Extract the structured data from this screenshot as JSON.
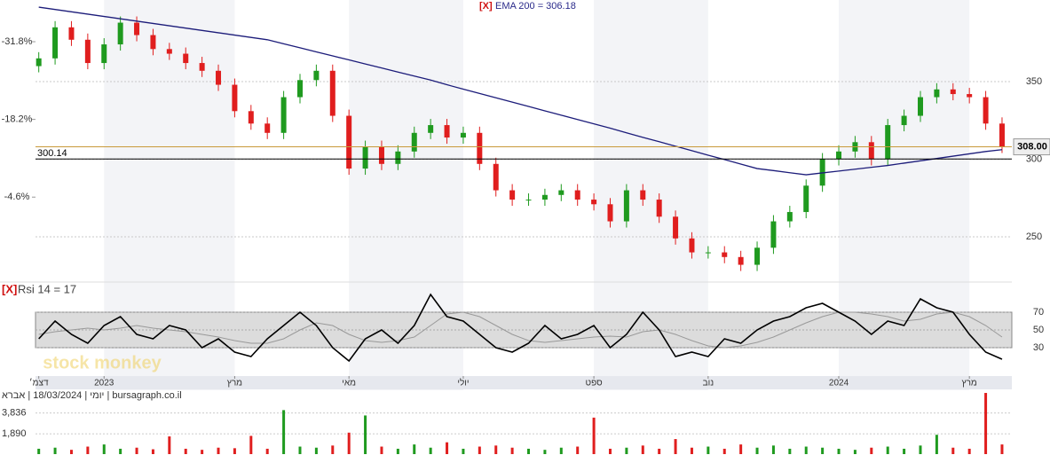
{
  "chart_data": [
    {
      "type": "candlestick",
      "title_tag": "[X]",
      "title": "EMA 200 = 306.18",
      "watermark": "stock monkey",
      "open": [
        360,
        365,
        385,
        377,
        362,
        374,
        388,
        380,
        371,
        368,
        362,
        357,
        348,
        331,
        323,
        317,
        340,
        351,
        357,
        328,
        294,
        308,
        297,
        305,
        317,
        322,
        314,
        317,
        297,
        280,
        274,
        274,
        277,
        280,
        274,
        271,
        260,
        280,
        274,
        263,
        249,
        240,
        240,
        237,
        232,
        243,
        260,
        266,
        283,
        300,
        305,
        311,
        300,
        322,
        328,
        340,
        345,
        342,
        340,
        323
      ],
      "high": [
        369,
        389,
        389,
        381,
        378,
        392,
        392,
        384,
        375,
        372,
        366,
        361,
        352,
        335,
        327,
        344,
        355,
        361,
        361,
        332,
        312,
        312,
        309,
        321,
        326,
        326,
        321,
        321,
        301,
        284,
        278,
        281,
        284,
        284,
        278,
        275,
        284,
        284,
        278,
        267,
        253,
        244,
        244,
        241,
        247,
        264,
        270,
        287,
        304,
        309,
        315,
        315,
        326,
        332,
        344,
        349,
        349,
        346,
        344,
        327
      ],
      "low": [
        356,
        361,
        373,
        358,
        358,
        370,
        376,
        367,
        364,
        358,
        353,
        344,
        327,
        319,
        313,
        313,
        336,
        347,
        324,
        290,
        290,
        293,
        293,
        301,
        313,
        310,
        310,
        293,
        276,
        270,
        270,
        270,
        273,
        270,
        267,
        256,
        256,
        270,
        259,
        245,
        236,
        236,
        233,
        228,
        228,
        239,
        256,
        262,
        279,
        296,
        301,
        296,
        296,
        318,
        324,
        336,
        338,
        336,
        319,
        304
      ],
      "close": [
        365,
        385,
        377,
        362,
        374,
        388,
        380,
        371,
        368,
        362,
        357,
        348,
        331,
        323,
        317,
        340,
        351,
        357,
        328,
        294,
        308,
        297,
        305,
        317,
        322,
        314,
        317,
        297,
        280,
        274,
        274,
        277,
        280,
        274,
        271,
        260,
        280,
        274,
        263,
        249,
        240,
        240,
        237,
        232,
        243,
        260,
        266,
        283,
        300,
        305,
        311,
        300,
        322,
        328,
        340,
        345,
        342,
        340,
        323,
        308
      ],
      "up_color": "#1f9a1f",
      "down_color": "#e01e1e",
      "ema": {
        "color": "#1c1c7a",
        "values": [
          398,
          396.5,
          395,
          393.5,
          392,
          390.5,
          389,
          387.5,
          386,
          384.5,
          383,
          381.5,
          380,
          378.5,
          377,
          374.4,
          371.8,
          369.2,
          366.6,
          364,
          361.4,
          358.8,
          356.2,
          353.6,
          351,
          348,
          345.2,
          342.4,
          339.6,
          336.8,
          334,
          331.2,
          328.4,
          325.6,
          322.8,
          320,
          317,
          314.1,
          311.3,
          308.4,
          305.5,
          302.6,
          299.8,
          296.9,
          294,
          292.7,
          291.3,
          290,
          291.2,
          292.4,
          293.6,
          294.8,
          296,
          297.5,
          299,
          300.5,
          302,
          303.5,
          305,
          306.18
        ]
      },
      "ylim": [
        222.6,
        402.6
      ],
      "yticks": [
        350,
        300,
        250
      ],
      "grid": true,
      "y2lim": [
        9.8,
        -39.1
      ],
      "y2ticks": [
        {
          "value": -4.6,
          "label": "-4.6%"
        },
        {
          "value": -18.2,
          "label": "-18.2%"
        },
        {
          "value": -31.8,
          "label": "-31.8%"
        }
      ],
      "xlim": [
        -0.2,
        59.6
      ],
      "hlines": [
        {
          "value": 300.14,
          "label": "300.14",
          "color": "#000000"
        },
        {
          "value": 308,
          "label": "308.00",
          "color": "#c89a3a"
        }
      ]
    },
    {
      "type": "line",
      "title_tag": "[X]",
      "title": "Rsi 14 = 17",
      "series": [
        {
          "color": "#000000",
          "values": [
            40,
            60,
            45,
            35,
            55,
            65,
            45,
            40,
            55,
            50,
            30,
            40,
            25,
            20,
            40,
            55,
            70,
            55,
            30,
            15,
            40,
            50,
            35,
            55,
            90,
            65,
            60,
            45,
            30,
            25,
            35,
            55,
            40,
            45,
            55,
            30,
            45,
            70,
            50,
            20,
            25,
            20,
            40,
            35,
            50,
            60,
            65,
            75,
            80,
            70,
            60,
            45,
            60,
            55,
            85,
            75,
            70,
            45,
            25,
            17
          ]
        },
        {
          "color": "#999999",
          "values": [
            45,
            48,
            50,
            52,
            50,
            52,
            55,
            52,
            50,
            48,
            45,
            42,
            38,
            35,
            35,
            40,
            50,
            58,
            55,
            45,
            38,
            36,
            38,
            42,
            55,
            68,
            70,
            65,
            55,
            45,
            38,
            36,
            38,
            40,
            42,
            43,
            42,
            48,
            50,
            45,
            38,
            32,
            30,
            32,
            36,
            42,
            50,
            58,
            65,
            70,
            70,
            68,
            65,
            60,
            62,
            68,
            70,
            65,
            55,
            42
          ]
        }
      ],
      "ylim": [
        0,
        100
      ],
      "yticks": [
        70,
        50,
        30
      ],
      "band": [
        30,
        70
      ],
      "xticks": [
        {
          "value": 0,
          "label": "דצמ׳"
        },
        {
          "value": 4,
          "label": "2023"
        },
        {
          "value": 12,
          "label": "מרץ"
        },
        {
          "value": 19,
          "label": "מאי"
        },
        {
          "value": 26,
          "label": "יולי"
        },
        {
          "value": 34,
          "label": "ספט"
        },
        {
          "value": 41,
          "label": "נוב"
        },
        {
          "value": 49,
          "label": "2024"
        },
        {
          "value": 57,
          "label": "מרץ"
        }
      ]
    },
    {
      "type": "bar",
      "subtitle": "יומי | 18/03/2024 | אברא | bursagraph.co.il",
      "values": [
        500,
        600,
        400,
        700,
        900,
        500,
        600,
        450,
        1650,
        500,
        400,
        600,
        550,
        1700,
        500,
        4100,
        700,
        600,
        800,
        2000,
        3600,
        700,
        500,
        900,
        600,
        1100,
        500,
        700,
        800,
        600,
        500,
        400,
        600,
        700,
        3400,
        500,
        600,
        800,
        500,
        1400,
        600,
        700,
        500,
        900,
        600,
        800,
        500,
        700,
        600,
        500,
        400,
        600,
        700,
        500,
        800,
        1800,
        600,
        500,
        5700,
        900
      ],
      "ylim": [
        0,
        5950
      ],
      "yticks": [
        {
          "value": 3836,
          "label": "3,836"
        },
        {
          "value": 1890,
          "label": "1,890"
        }
      ]
    }
  ]
}
